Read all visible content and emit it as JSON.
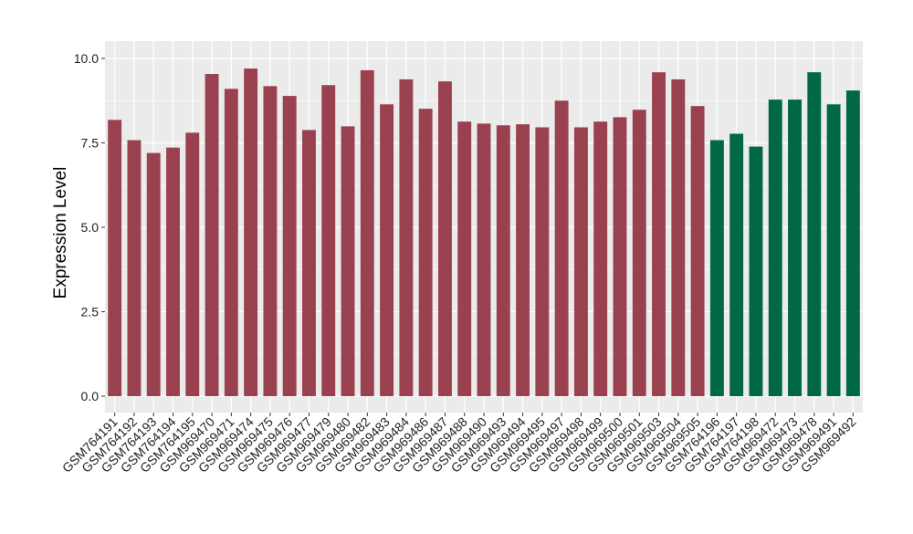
{
  "chart_data": {
    "type": "bar",
    "title": "",
    "xlabel": "",
    "ylabel": "Expression Level",
    "ylim": [
      -0.45,
      10.3
    ],
    "yticks": [
      "0.0",
      "2.5",
      "5.0",
      "7.5",
      "10.0"
    ],
    "ytick_values": [
      0,
      2.5,
      5,
      7.5,
      10
    ],
    "grid": true,
    "legend": "none",
    "colors": {
      "group1": "#9A4150",
      "group2": "#006845",
      "panel": "#EBEBEB",
      "grid": "#FFFFFF"
    },
    "categories": [
      "GSM764191",
      "GSM764192",
      "GSM764193",
      "GSM764194",
      "GSM764195",
      "GSM969470",
      "GSM969471",
      "GSM969474",
      "GSM969475",
      "GSM969476",
      "GSM969477",
      "GSM969479",
      "GSM969480",
      "GSM969482",
      "GSM969483",
      "GSM969484",
      "GSM969486",
      "GSM969487",
      "GSM969488",
      "GSM969490",
      "GSM969493",
      "GSM969494",
      "GSM969495",
      "GSM969497",
      "GSM969498",
      "GSM969499",
      "GSM969500",
      "GSM969501",
      "GSM969503",
      "GSM969504",
      "GSM969505",
      "GSM764196",
      "GSM764197",
      "GSM764198",
      "GSM969472",
      "GSM969473",
      "GSM969478",
      "GSM969491",
      "GSM969492"
    ],
    "values": [
      8.18,
      7.58,
      7.2,
      7.36,
      7.8,
      9.54,
      9.1,
      9.7,
      9.18,
      8.89,
      7.88,
      9.21,
      7.99,
      9.65,
      8.64,
      9.38,
      8.51,
      9.32,
      8.13,
      8.07,
      8.02,
      8.05,
      7.96,
      8.75,
      7.96,
      8.13,
      8.26,
      8.48,
      9.59,
      9.38,
      8.59,
      7.58,
      7.77,
      7.39,
      8.78,
      8.78,
      9.59,
      8.64,
      9.05
    ],
    "groups": [
      1,
      1,
      1,
      1,
      1,
      1,
      1,
      1,
      1,
      1,
      1,
      1,
      1,
      1,
      1,
      1,
      1,
      1,
      1,
      1,
      1,
      1,
      1,
      1,
      1,
      1,
      1,
      1,
      1,
      1,
      1,
      2,
      2,
      2,
      2,
      2,
      2,
      2,
      2
    ]
  }
}
